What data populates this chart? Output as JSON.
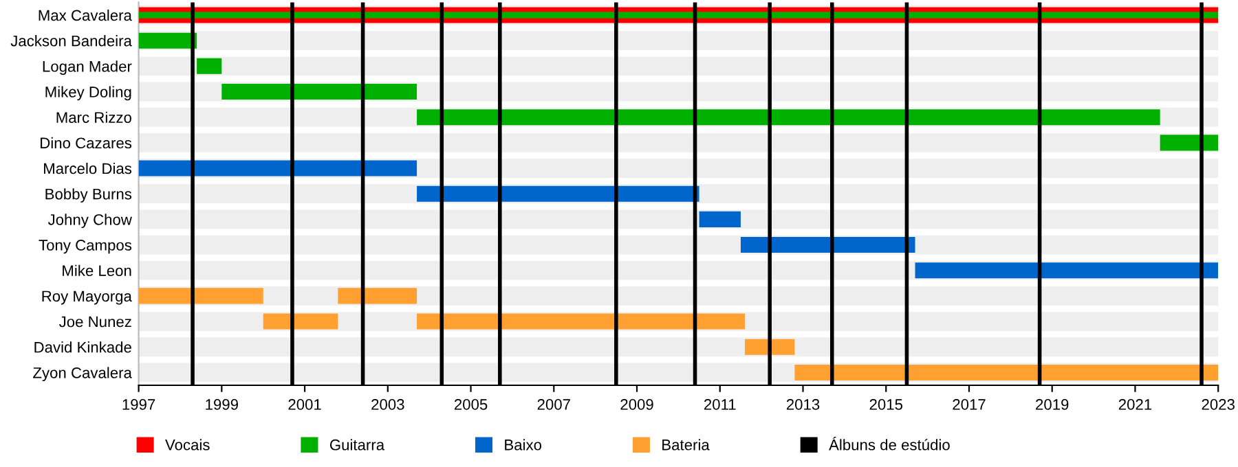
{
  "chart_data": {
    "type": "bar",
    "orientation": "horizontal",
    "categories": [
      "Max Cavalera",
      "Jackson Bandeira",
      "Logan Mader",
      "Mikey Doling",
      "Marc Rizzo",
      "Dino Cazares",
      "Marcelo Dias",
      "Bobby Burns",
      "Johny Chow",
      "Tony Campos",
      "Mike Leon",
      "Roy Mayorga",
      "Joe Nunez",
      "David Kinkade",
      "Zyon Cavalera"
    ],
    "series": [
      {
        "name": "Vocais",
        "color": "#ff0000",
        "base": [
          1997,
          null,
          null,
          null,
          null,
          null,
          null,
          null,
          null,
          null,
          null,
          null,
          null,
          null,
          null
        ],
        "values": [
          26,
          null,
          null,
          null,
          null,
          null,
          null,
          null,
          null,
          null,
          null,
          null,
          null,
          null,
          null
        ]
      },
      {
        "name": "Guitarra",
        "color": "#00b000",
        "base": [
          1997,
          1997,
          1998.4,
          1999.0,
          2003.7,
          2021.6,
          null,
          null,
          null,
          null,
          null,
          null,
          null,
          null,
          null
        ],
        "values": [
          26,
          1.4,
          0.6,
          4.7,
          17.9,
          1.4,
          null,
          null,
          null,
          null,
          null,
          null,
          null,
          null,
          null
        ]
      },
      {
        "name": "Baixo",
        "color": "#0066cc",
        "base": [
          null,
          null,
          null,
          null,
          null,
          null,
          1997,
          2003.7,
          2010.5,
          2011.5,
          2015.7,
          null,
          null,
          null,
          null
        ],
        "values": [
          null,
          null,
          null,
          null,
          null,
          null,
          6.7,
          6.8,
          1.0,
          4.2,
          7.3,
          null,
          null,
          null,
          null
        ]
      },
      {
        "name": "Bateria",
        "color": "#ffa030",
        "base": [
          null,
          null,
          null,
          null,
          null,
          null,
          null,
          null,
          null,
          null,
          null,
          1997,
          2000.0,
          2011.6,
          2012.8
        ],
        "values": [
          null,
          null,
          null,
          null,
          null,
          null,
          null,
          null,
          null,
          null,
          null,
          3.0,
          1.8,
          1.2,
          10.2
        ]
      },
      {
        "color": "#ffa030",
        "base": [
          null,
          null,
          null,
          null,
          null,
          null,
          null,
          null,
          null,
          null,
          null,
          2001.8,
          2003.7,
          null,
          null
        ],
        "values": [
          null,
          null,
          null,
          null,
          null,
          null,
          null,
          null,
          null,
          null,
          null,
          1.9,
          7.9,
          null,
          null
        ]
      }
    ],
    "ref_lines": [
      {
        "axis": "x",
        "value": 1998.3,
        "label": "Álbuns de estúdio",
        "color": "#000000"
      },
      {
        "axis": "x",
        "value": 2000.7,
        "color": "#000000"
      },
      {
        "axis": "x",
        "value": 2002.4,
        "color": "#000000"
      },
      {
        "axis": "x",
        "value": 2004.3,
        "color": "#000000"
      },
      {
        "axis": "x",
        "value": 2005.7,
        "color": "#000000"
      },
      {
        "axis": "x",
        "value": 2008.5,
        "color": "#000000"
      },
      {
        "axis": "x",
        "value": 2010.4,
        "color": "#000000"
      },
      {
        "axis": "x",
        "value": 2012.2,
        "color": "#000000"
      },
      {
        "axis": "x",
        "value": 2013.7,
        "color": "#000000"
      },
      {
        "axis": "x",
        "value": 2015.5,
        "color": "#000000"
      },
      {
        "axis": "x",
        "value": 2018.7,
        "color": "#000000"
      },
      {
        "axis": "x",
        "value": 2022.6,
        "color": "#000000"
      }
    ],
    "xlim": [
      1997,
      2023
    ],
    "xticks": [
      1997,
      1999,
      2001,
      2003,
      2005,
      2007,
      2009,
      2011,
      2013,
      2015,
      2017,
      2019,
      2021,
      2023
    ],
    "grid": "y",
    "legend": "bottom"
  }
}
